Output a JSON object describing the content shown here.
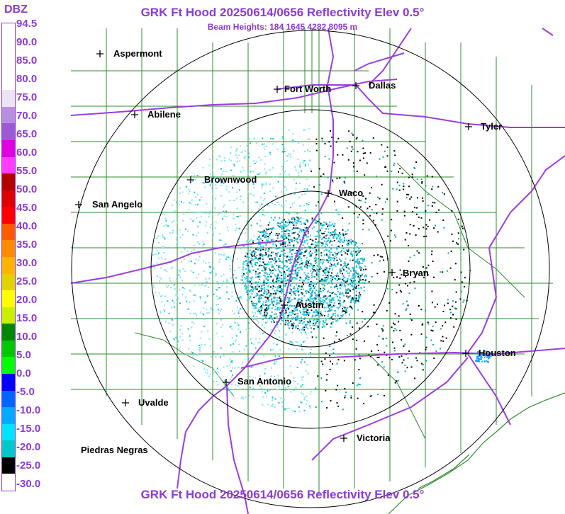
{
  "header": {
    "title": "GRK Ft Hood 20250614/0656 Reflectivity Elev 0.5°",
    "beam_heights": "Beam Heights: 184 1645 4282 8095 m",
    "footer": "GRK Ft Hood 20250614/0656 Reflectivity Elev 0.5°"
  },
  "legend": {
    "title": "DBZ",
    "levels": [
      "94.5",
      "90.0",
      "85.0",
      "80.0",
      "75.0",
      "70.0",
      "65.0",
      "60.0",
      "55.0",
      "50.0",
      "45.0",
      "40.0",
      "35.0",
      "30.0",
      "25.0",
      "20.0",
      "15.0",
      "10.0",
      "5.0",
      "0.0",
      "-5.0",
      "-10.0",
      "-15.0",
      "-20.0",
      "-25.0",
      "-30.0"
    ],
    "colors": [
      "#ffffff",
      "#ffffff",
      "#ffffff",
      "#ffffff",
      "#ece4f6",
      "#b98ee0",
      "#9b59d4",
      "#e000e0",
      "#ff3cff",
      "#b20000",
      "#dd0000",
      "#ff0000",
      "#ff5a00",
      "#ff8c00",
      "#ffb400",
      "#e2d200",
      "#ffff00",
      "#c8f000",
      "#008800",
      "#00c800",
      "#00ff00",
      "#0000ff",
      "#0066ff",
      "#00aaff",
      "#00e4ff",
      "#00c8c8",
      "#000000",
      "#ffffff"
    ]
  },
  "map": {
    "cities": [
      {
        "name": "Aspermont"
      },
      {
        "name": "Fort Worth"
      },
      {
        "name": "Dallas"
      },
      {
        "name": "Abilene"
      },
      {
        "name": "Tyler"
      },
      {
        "name": "Brownwood"
      },
      {
        "name": "Waco"
      },
      {
        "name": "San Angelo"
      },
      {
        "name": "Bryan"
      },
      {
        "name": "Austin"
      },
      {
        "name": "Houston"
      },
      {
        "name": "San Antonio"
      },
      {
        "name": "Uvalde"
      },
      {
        "name": "Victoria"
      },
      {
        "name": "Piedras Negras"
      }
    ],
    "range_rings": 3,
    "colors": {
      "roads": "#9b3de0",
      "counties": "#2e8b2e",
      "rings": "#000000"
    }
  }
}
